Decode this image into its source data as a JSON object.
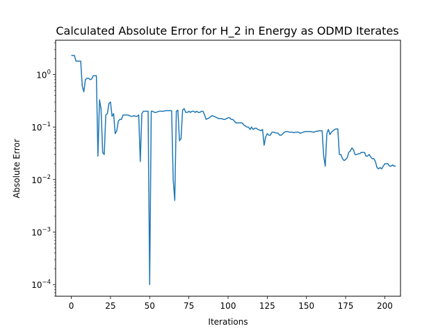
{
  "chart_data": {
    "type": "line",
    "title": "Calculated Absolute Error for H_2 in Energy as ODMD Iterates",
    "xlabel": "Iterations",
    "ylabel": "Absolute Error",
    "xlim": [
      -10,
      210
    ],
    "ylim": [
      6e-05,
      4.5
    ],
    "yscale": "log",
    "grid": false,
    "x_ticks": [
      0,
      25,
      50,
      75,
      100,
      125,
      150,
      175,
      200
    ],
    "x_tick_labels": [
      "0",
      "25",
      "50",
      "75",
      "100",
      "125",
      "150",
      "175",
      "200"
    ],
    "y_ticks": [
      {
        "value": 0.0001,
        "base": "10",
        "exp": "−4"
      },
      {
        "value": 0.001,
        "base": "10",
        "exp": "−3"
      },
      {
        "value": 0.01,
        "base": "10",
        "exp": "−2"
      },
      {
        "value": 0.1,
        "base": "10",
        "exp": "−1"
      },
      {
        "value": 1,
        "base": "10",
        "exp": "0"
      }
    ],
    "line_color": "#1f77b4",
    "series": [
      {
        "points": [
          [
            0,
            2.3
          ],
          [
            1,
            2.3
          ],
          [
            2,
            2.3
          ],
          [
            3,
            1.8
          ],
          [
            4,
            1.8
          ],
          [
            5,
            1.8
          ],
          [
            6,
            1.8
          ],
          [
            7,
            0.6
          ],
          [
            8,
            0.47
          ],
          [
            9,
            0.8
          ],
          [
            10,
            0.85
          ],
          [
            11,
            0.85
          ],
          [
            12,
            0.8
          ],
          [
            13,
            0.82
          ],
          [
            14,
            0.95
          ],
          [
            15,
            0.95
          ],
          [
            16,
            0.95
          ],
          [
            17,
            0.028
          ],
          [
            18,
            0.33
          ],
          [
            19,
            0.22
          ],
          [
            20,
            0.033
          ],
          [
            21,
            0.03
          ],
          [
            22,
            0.17
          ],
          [
            23,
            0.18
          ],
          [
            24,
            0.28
          ],
          [
            25,
            0.3
          ],
          [
            26,
            0.16
          ],
          [
            27,
            0.18
          ],
          [
            28,
            0.075
          ],
          [
            29,
            0.085
          ],
          [
            30,
            0.13
          ],
          [
            31,
            0.14
          ],
          [
            32,
            0.14
          ],
          [
            33,
            0.17
          ],
          [
            34,
            0.17
          ],
          [
            35,
            0.17
          ],
          [
            36,
            0.17
          ],
          [
            37,
            0.165
          ],
          [
            38,
            0.16
          ],
          [
            39,
            0.16
          ],
          [
            40,
            0.165
          ],
          [
            41,
            0.16
          ],
          [
            42,
            0.16
          ],
          [
            43,
            0.17
          ],
          [
            44,
            0.022
          ],
          [
            45,
            0.18
          ],
          [
            46,
            0.2
          ],
          [
            47,
            0.2
          ],
          [
            48,
            0.2
          ],
          [
            49,
            0.2
          ],
          [
            50,
            0.0001
          ],
          [
            51,
            0.2
          ],
          [
            52,
            0.2
          ],
          [
            53,
            0.19
          ],
          [
            54,
            0.19
          ],
          [
            55,
            0.195
          ],
          [
            56,
            0.2
          ],
          [
            57,
            0.2
          ],
          [
            58,
            0.2
          ],
          [
            59,
            0.2
          ],
          [
            60,
            0.205
          ],
          [
            61,
            0.205
          ],
          [
            62,
            0.205
          ],
          [
            63,
            0.205
          ],
          [
            64,
            0.205
          ],
          [
            65,
            0.01
          ],
          [
            66,
            0.004
          ],
          [
            67,
            0.2
          ],
          [
            68,
            0.21
          ],
          [
            69,
            0.055
          ],
          [
            70,
            0.06
          ],
          [
            71,
            0.21
          ],
          [
            72,
            0.225
          ],
          [
            73,
            0.19
          ],
          [
            74,
            0.19
          ],
          [
            75,
            0.2
          ],
          [
            76,
            0.19
          ],
          [
            77,
            0.2
          ],
          [
            78,
            0.2
          ],
          [
            79,
            0.19
          ],
          [
            80,
            0.2
          ],
          [
            81,
            0.19
          ],
          [
            82,
            0.19
          ],
          [
            83,
            0.2
          ],
          [
            84,
            0.2
          ],
          [
            85,
            0.17
          ],
          [
            86,
            0.14
          ],
          [
            87,
            0.145
          ],
          [
            88,
            0.15
          ],
          [
            89,
            0.16
          ],
          [
            90,
            0.165
          ],
          [
            91,
            0.16
          ],
          [
            92,
            0.155
          ],
          [
            93,
            0.15
          ],
          [
            94,
            0.145
          ],
          [
            95,
            0.145
          ],
          [
            96,
            0.145
          ],
          [
            97,
            0.14
          ],
          [
            98,
            0.14
          ],
          [
            99,
            0.145
          ],
          [
            100,
            0.15
          ],
          [
            101,
            0.15
          ],
          [
            102,
            0.14
          ],
          [
            103,
            0.14
          ],
          [
            104,
            0.13
          ],
          [
            105,
            0.12
          ],
          [
            106,
            0.12
          ],
          [
            107,
            0.12
          ],
          [
            108,
            0.12
          ],
          [
            109,
            0.12
          ],
          [
            110,
            0.11
          ],
          [
            111,
            0.105
          ],
          [
            112,
            0.1
          ],
          [
            113,
            0.1
          ],
          [
            114,
            0.09
          ],
          [
            115,
            0.1
          ],
          [
            116,
            0.09
          ],
          [
            117,
            0.095
          ],
          [
            118,
            0.095
          ],
          [
            119,
            0.09
          ],
          [
            120,
            0.088
          ],
          [
            121,
            0.085
          ],
          [
            122,
            0.09
          ],
          [
            123,
            0.045
          ],
          [
            124,
            0.065
          ],
          [
            125,
            0.075
          ],
          [
            126,
            0.07
          ],
          [
            127,
            0.07
          ],
          [
            128,
            0.08
          ],
          [
            129,
            0.08
          ],
          [
            130,
            0.078
          ],
          [
            131,
            0.077
          ],
          [
            132,
            0.076
          ],
          [
            133,
            0.07
          ],
          [
            134,
            0.07
          ],
          [
            135,
            0.075
          ],
          [
            136,
            0.08
          ],
          [
            137,
            0.082
          ],
          [
            138,
            0.082
          ],
          [
            139,
            0.08
          ],
          [
            140,
            0.08
          ],
          [
            141,
            0.08
          ],
          [
            142,
            0.078
          ],
          [
            143,
            0.08
          ],
          [
            144,
            0.08
          ],
          [
            145,
            0.08
          ],
          [
            146,
            0.076
          ],
          [
            147,
            0.078
          ],
          [
            148,
            0.08
          ],
          [
            149,
            0.082
          ],
          [
            150,
            0.082
          ],
          [
            151,
            0.082
          ],
          [
            152,
            0.082
          ],
          [
            153,
            0.082
          ],
          [
            154,
            0.08
          ],
          [
            155,
            0.08
          ],
          [
            156,
            0.083
          ],
          [
            157,
            0.083
          ],
          [
            158,
            0.085
          ],
          [
            159,
            0.085
          ],
          [
            160,
            0.085
          ],
          [
            161,
            0.028
          ],
          [
            162,
            0.018
          ],
          [
            163,
            0.075
          ],
          [
            164,
            0.09
          ],
          [
            165,
            0.072
          ],
          [
            166,
            0.08
          ],
          [
            167,
            0.085
          ],
          [
            168,
            0.09
          ],
          [
            169,
            0.092
          ],
          [
            170,
            0.092
          ],
          [
            171,
            0.03
          ],
          [
            172,
            0.03
          ],
          [
            173,
            0.025
          ],
          [
            174,
            0.023
          ],
          [
            175,
            0.024
          ],
          [
            176,
            0.026
          ],
          [
            177,
            0.033
          ],
          [
            178,
            0.035
          ],
          [
            179,
            0.04
          ],
          [
            180,
            0.037
          ],
          [
            181,
            0.03
          ],
          [
            182,
            0.03
          ],
          [
            183,
            0.031
          ],
          [
            184,
            0.031
          ],
          [
            185,
            0.033
          ],
          [
            186,
            0.033
          ],
          [
            187,
            0.033
          ],
          [
            188,
            0.028
          ],
          [
            189,
            0.028
          ],
          [
            190,
            0.03
          ],
          [
            191,
            0.027
          ],
          [
            192,
            0.025
          ],
          [
            193,
            0.025
          ],
          [
            194,
            0.022
          ],
          [
            195,
            0.017
          ],
          [
            196,
            0.016
          ],
          [
            197,
            0.017
          ],
          [
            198,
            0.016
          ],
          [
            199,
            0.018
          ],
          [
            200,
            0.02
          ],
          [
            201,
            0.02
          ],
          [
            202,
            0.02
          ],
          [
            203,
            0.018
          ],
          [
            204,
            0.018
          ],
          [
            205,
            0.019
          ],
          [
            206,
            0.018
          ],
          [
            207,
            0.018
          ]
        ]
      }
    ]
  }
}
